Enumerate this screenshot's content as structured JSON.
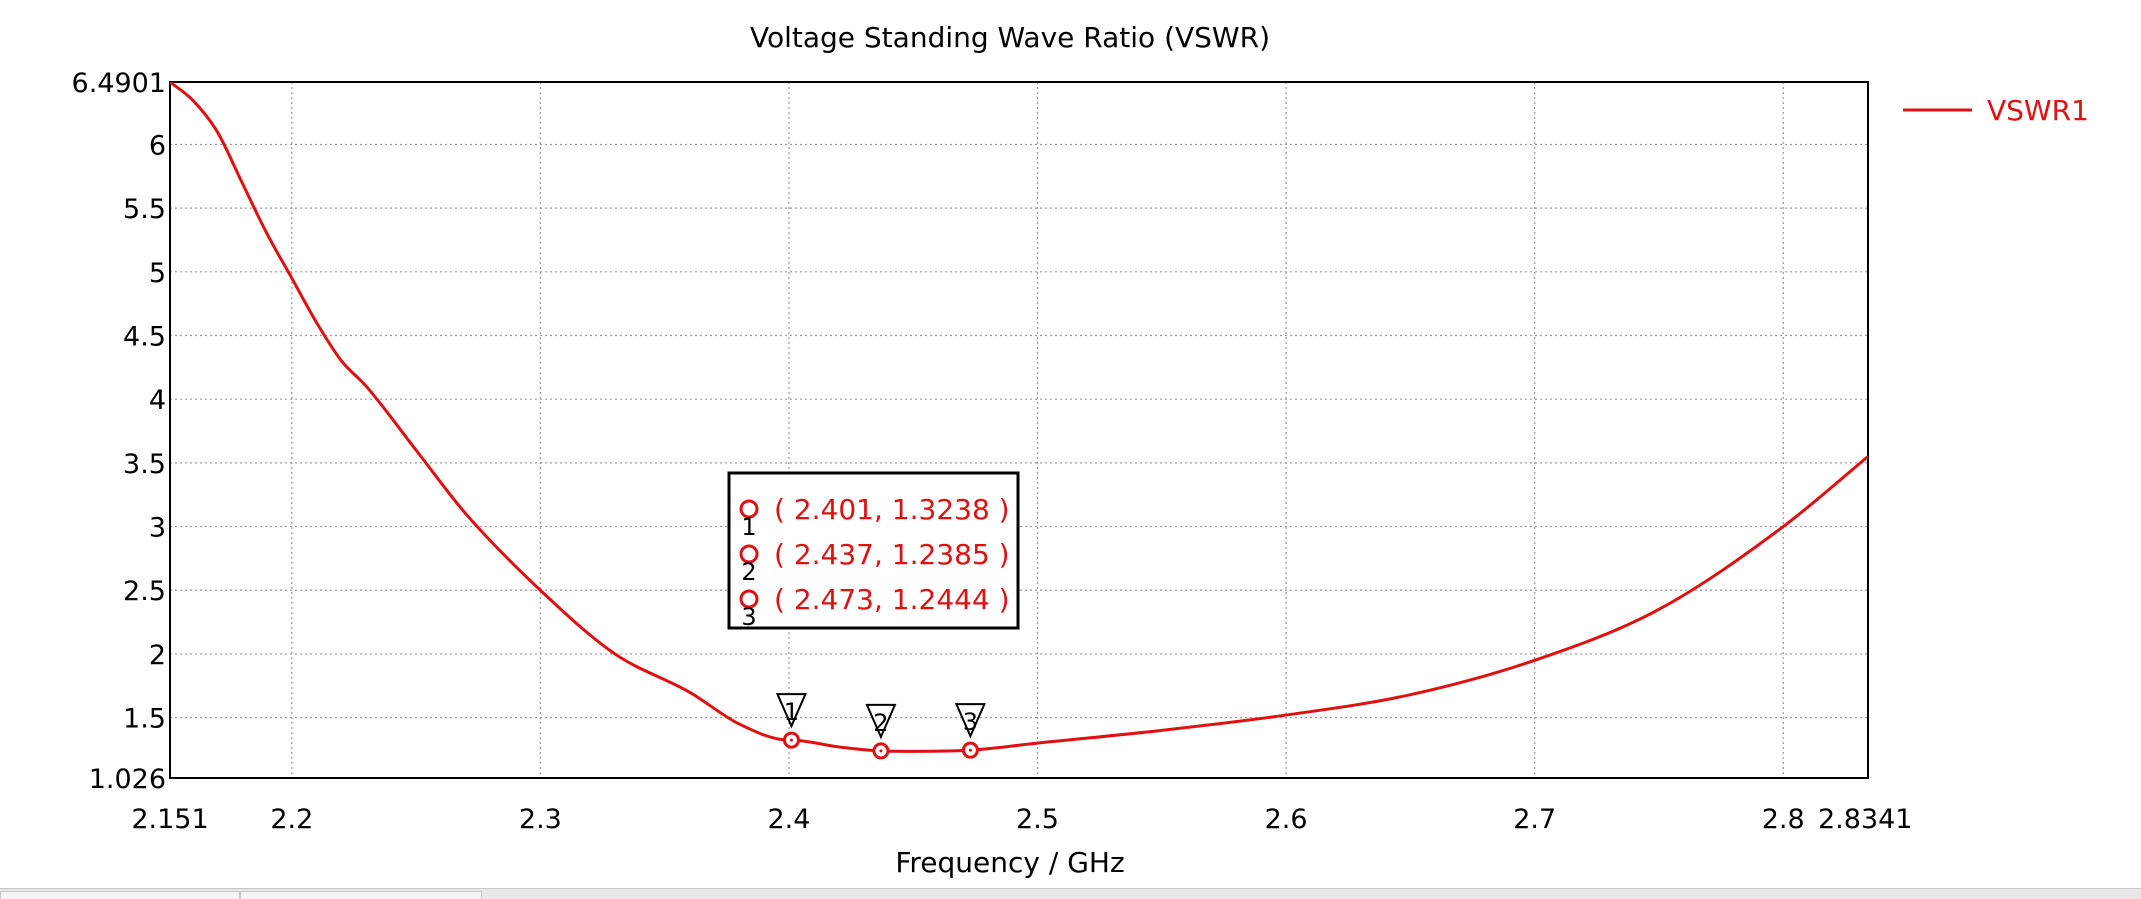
{
  "chart_data": {
    "type": "line",
    "title": "Voltage Standing Wave Ratio (VSWR)",
    "xlabel": "Frequency / GHz",
    "ylabel": "",
    "xlim": [
      2.151,
      2.8341
    ],
    "ylim": [
      1.026,
      6.4901
    ],
    "xticks": [
      "2.151",
      "2.2",
      "2.3",
      "2.4",
      "2.5",
      "2.6",
      "2.7",
      "2.8",
      "2.8341"
    ],
    "yticks": [
      "1.026",
      "1.5",
      "2",
      "2.5",
      "3",
      "3.5",
      "4",
      "4.5",
      "5",
      "5.5",
      "6",
      "6.4901"
    ],
    "grid": true,
    "legend_position": "top-right",
    "colors": {
      "series": "#e01010",
      "grid": "#9a9a9a",
      "axis": "#000000",
      "text": "#000000"
    },
    "series": [
      {
        "name": "VSWR1",
        "x": [
          2.151,
          2.16,
          2.17,
          2.18,
          2.19,
          2.2,
          2.21,
          2.22,
          2.23,
          2.25,
          2.27,
          2.3,
          2.33,
          2.36,
          2.38,
          2.4,
          2.401,
          2.42,
          2.437,
          2.45,
          2.473,
          2.5,
          2.55,
          2.6,
          2.65,
          2.7,
          2.75,
          2.8,
          2.8341
        ],
        "y": [
          6.4901,
          6.35,
          6.1,
          5.7,
          5.3,
          4.95,
          4.6,
          4.3,
          4.1,
          3.6,
          3.1,
          2.5,
          2.0,
          1.7,
          1.45,
          1.3238,
          1.3238,
          1.27,
          1.2385,
          1.235,
          1.2444,
          1.3,
          1.4,
          1.52,
          1.68,
          1.95,
          2.35,
          3.0,
          3.55
        ]
      }
    ],
    "markers": [
      {
        "id": "1",
        "x": 2.401,
        "y": 1.3238,
        "label": "( 2.401, 1.3238 )"
      },
      {
        "id": "2",
        "x": 2.437,
        "y": 1.2385,
        "label": "( 2.437, 1.2385 )"
      },
      {
        "id": "3",
        "x": 2.473,
        "y": 1.2444,
        "label": "( 2.473, 1.2444 )"
      }
    ]
  }
}
